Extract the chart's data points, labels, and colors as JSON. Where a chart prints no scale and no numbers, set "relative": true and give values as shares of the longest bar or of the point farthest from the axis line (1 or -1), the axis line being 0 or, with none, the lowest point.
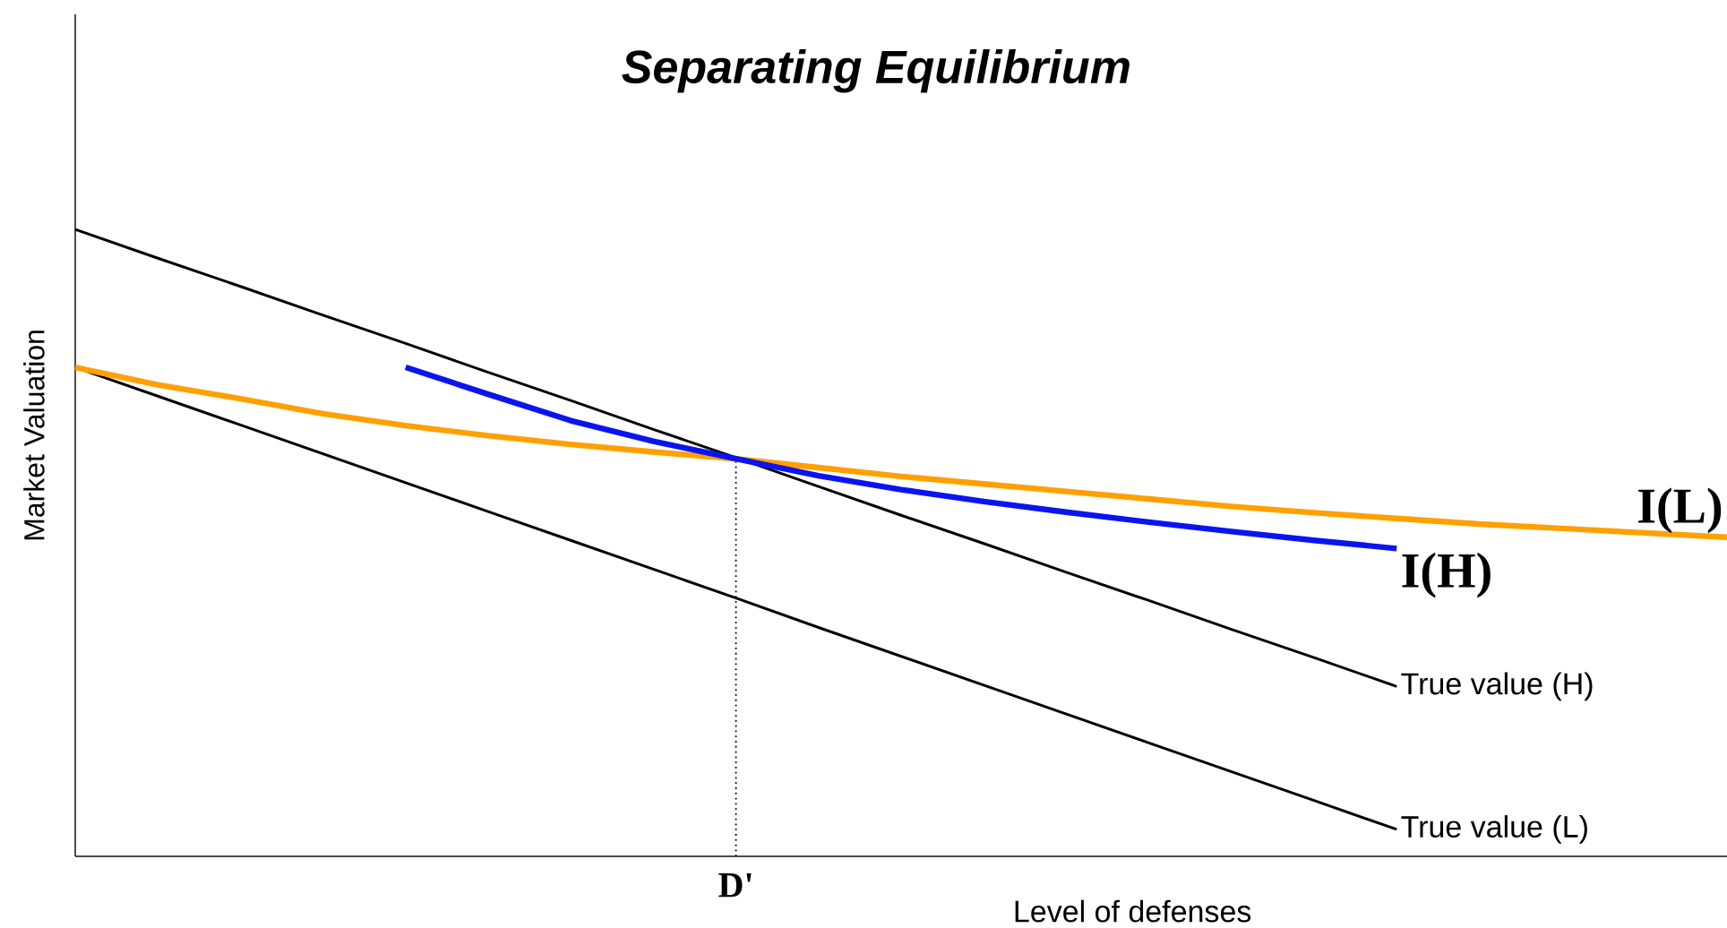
{
  "chart_data": {
    "type": "line",
    "title": "Separating Equilibrium",
    "xlabel": "Level of defenses",
    "ylabel": "Market Valuation",
    "relative": true,
    "legend": false,
    "categories": [
      null,
      null,
      null,
      null,
      null,
      null,
      null,
      null,
      null,
      null,
      null,
      null,
      null,
      null,
      null,
      null,
      null,
      null,
      null,
      null,
      null
    ],
    "annotations": [
      "D'"
    ],
    "series": [
      {
        "name": "True value (H)",
        "color": "#000000",
        "values": [
          1.0,
          0.954,
          0.909,
          0.863,
          0.818,
          0.772,
          0.727,
          0.681,
          0.636,
          0.59,
          0.544,
          0.499,
          0.453,
          0.408,
          0.362,
          0.317,
          0.271,
          null,
          null,
          null,
          null
        ]
      },
      {
        "name": "True value (L)",
        "color": "#000000",
        "values": [
          0.78,
          0.734,
          0.688,
          0.642,
          0.596,
          0.55,
          0.504,
          0.458,
          0.412,
          0.365,
          0.319,
          0.273,
          0.227,
          0.181,
          0.135,
          0.089,
          0.043,
          null,
          null,
          null,
          null
        ]
      },
      {
        "name": "I(L)",
        "color": "#ffa000",
        "values": [
          0.78,
          0.752,
          0.73,
          0.706,
          0.687,
          0.671,
          0.657,
          0.645,
          0.634,
          0.62,
          0.606,
          0.594,
          0.582,
          0.57,
          0.558,
          0.548,
          0.539,
          0.53,
          0.523,
          0.516,
          0.509
        ]
      },
      {
        "name": "I(H)",
        "color": "#0a14f0",
        "values": [
          null,
          null,
          null,
          null,
          0.78,
          0.737,
          0.695,
          0.662,
          0.634,
          0.607,
          0.585,
          0.566,
          0.549,
          0.533,
          0.518,
          0.504,
          0.491,
          null,
          null,
          null,
          null
        ]
      }
    ]
  }
}
